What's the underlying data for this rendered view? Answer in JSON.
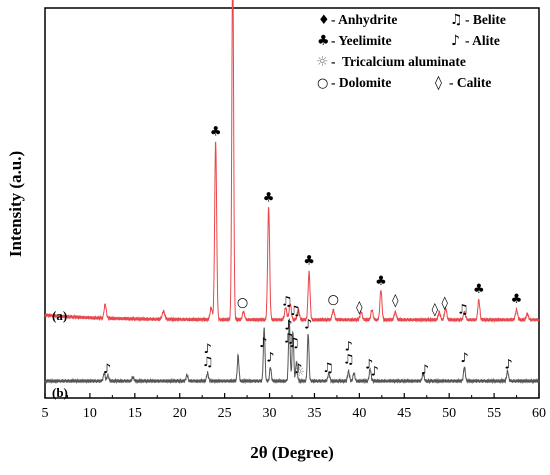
{
  "chart_data": {
    "type": "line",
    "xlabel": "2θ (Degree)",
    "ylabel": "Intensity (a.u.)",
    "xlim": [
      5,
      60
    ],
    "x_ticks": [
      5,
      10,
      15,
      20,
      25,
      30,
      35,
      40,
      45,
      50,
      55,
      60
    ],
    "y_ticks_shown": false,
    "series": [
      {
        "name": "(a)",
        "color": "#e8474b",
        "baseline": 0.155,
        "peaks": [
          {
            "x": 11.7,
            "h": 0.035,
            "w": 0.12
          },
          {
            "x": 18.2,
            "h": 0.02,
            "w": 0.14
          },
          {
            "x": 23.5,
            "h": 0.03,
            "w": 0.12
          },
          {
            "x": 24.0,
            "h": 0.45,
            "w": 0.11
          },
          {
            "x": 25.9,
            "h": 0.905,
            "w": 0.1
          },
          {
            "x": 27.1,
            "h": 0.02,
            "w": 0.12
          },
          {
            "x": 29.9,
            "h": 0.285,
            "w": 0.11
          },
          {
            "x": 31.8,
            "h": 0.03,
            "w": 0.12
          },
          {
            "x": 32.3,
            "h": 0.04,
            "w": 0.12
          },
          {
            "x": 33.2,
            "h": 0.025,
            "w": 0.12
          },
          {
            "x": 34.4,
            "h": 0.12,
            "w": 0.11
          },
          {
            "x": 37.1,
            "h": 0.025,
            "w": 0.12
          },
          {
            "x": 40.2,
            "h": 0.02,
            "w": 0.12
          },
          {
            "x": 41.4,
            "h": 0.025,
            "w": 0.12
          },
          {
            "x": 42.4,
            "h": 0.075,
            "w": 0.11
          },
          {
            "x": 44.0,
            "h": 0.02,
            "w": 0.12
          },
          {
            "x": 48.9,
            "h": 0.02,
            "w": 0.12
          },
          {
            "x": 49.6,
            "h": 0.03,
            "w": 0.12
          },
          {
            "x": 51.7,
            "h": 0.02,
            "w": 0.12
          },
          {
            "x": 53.3,
            "h": 0.05,
            "w": 0.11
          },
          {
            "x": 57.5,
            "h": 0.025,
            "w": 0.12
          },
          {
            "x": 58.7,
            "h": 0.015,
            "w": 0.12
          }
        ]
      },
      {
        "name": "(b)",
        "color": "#555555",
        "baseline": 0.0,
        "peaks": [
          {
            "x": 11.6,
            "h": 0.02,
            "w": 0.1
          },
          {
            "x": 12.0,
            "h": 0.015,
            "w": 0.1
          },
          {
            "x": 14.8,
            "h": 0.01,
            "w": 0.1
          },
          {
            "x": 20.8,
            "h": 0.015,
            "w": 0.1
          },
          {
            "x": 23.1,
            "h": 0.02,
            "w": 0.1
          },
          {
            "x": 26.5,
            "h": 0.065,
            "w": 0.09
          },
          {
            "x": 29.4,
            "h": 0.135,
            "w": 0.09
          },
          {
            "x": 30.1,
            "h": 0.035,
            "w": 0.09
          },
          {
            "x": 32.2,
            "h": 0.155,
            "w": 0.09
          },
          {
            "x": 32.6,
            "h": 0.125,
            "w": 0.09
          },
          {
            "x": 33.0,
            "h": 0.05,
            "w": 0.09
          },
          {
            "x": 34.3,
            "h": 0.12,
            "w": 0.09
          },
          {
            "x": 36.6,
            "h": 0.02,
            "w": 0.1
          },
          {
            "x": 38.8,
            "h": 0.025,
            "w": 0.1
          },
          {
            "x": 39.4,
            "h": 0.02,
            "w": 0.1
          },
          {
            "x": 41.2,
            "h": 0.03,
            "w": 0.1
          },
          {
            "x": 47.1,
            "h": 0.02,
            "w": 0.1
          },
          {
            "x": 51.7,
            "h": 0.035,
            "w": 0.1
          },
          {
            "x": 56.5,
            "h": 0.025,
            "w": 0.1
          }
        ]
      }
    ],
    "legend": {
      "position": "top-right",
      "entries": [
        {
          "symbol": "♦",
          "label": "- Anhydrite"
        },
        {
          "symbol": "♫",
          "label": "- Belite"
        },
        {
          "symbol": "♣",
          "label": "- Yeelimite"
        },
        {
          "symbol": "♪",
          "label": "- Alite"
        },
        {
          "symbol": "☼",
          "label": "-  Tricalcium aluminate"
        },
        {
          "symbol": "○",
          "label": "- Dolomite"
        },
        {
          "symbol": "◊",
          "label": "- Calite"
        }
      ]
    },
    "annotations": [
      {
        "symbol": "♦",
        "x": 25.9,
        "series": "(a)"
      },
      {
        "symbol": "♣",
        "x": 24.0,
        "series": "(a)"
      },
      {
        "symbol": "♣",
        "x": 29.9,
        "series": "(a)"
      },
      {
        "symbol": "○",
        "x": 27.0,
        "series": "(a)"
      },
      {
        "symbol": "♫",
        "x": 31.9,
        "series": "(a)"
      },
      {
        "symbol": "♫",
        "x": 32.8,
        "series": "(a)"
      },
      {
        "symbol": "♣",
        "x": 34.4,
        "series": "(a)"
      },
      {
        "symbol": "○",
        "x": 37.1,
        "series": "(a)"
      },
      {
        "symbol": "◊",
        "x": 40.0,
        "series": "(a)"
      },
      {
        "symbol": "♣",
        "x": 42.4,
        "series": "(a)"
      },
      {
        "symbol": "◊",
        "x": 44.0,
        "series": "(a)"
      },
      {
        "symbol": "◊",
        "x": 48.4,
        "series": "(a)"
      },
      {
        "symbol": "◊",
        "x": 49.5,
        "series": "(a)"
      },
      {
        "symbol": "♫",
        "x": 51.5,
        "series": "(a)"
      },
      {
        "symbol": "♣",
        "x": 53.3,
        "series": "(a)"
      },
      {
        "symbol": "♣",
        "x": 57.5,
        "series": "(a)"
      },
      {
        "symbol": "♪",
        "x": 11.9,
        "series": "(b)"
      },
      {
        "symbol": "♫",
        "x": 23.1,
        "series": "(b)"
      },
      {
        "symbol": "♪",
        "x": 23.1,
        "series": "(b)"
      },
      {
        "symbol": "♪",
        "x": 29.3,
        "series": "(b)"
      },
      {
        "symbol": "♪",
        "x": 30.1,
        "series": "(b)"
      },
      {
        "symbol": "♫",
        "x": 32.1,
        "series": "(b)"
      },
      {
        "symbol": "♪",
        "x": 32.1,
        "series": "(b)"
      },
      {
        "symbol": "♪",
        "x": 33.2,
        "series": "(b)"
      },
      {
        "symbol": "♫",
        "x": 32.7,
        "series": "(b)"
      },
      {
        "symbol": "☼",
        "x": 33.3,
        "series": "(b)"
      },
      {
        "symbol": "♪",
        "x": 34.3,
        "series": "(b)"
      },
      {
        "symbol": "♫",
        "x": 36.5,
        "series": "(b)"
      },
      {
        "symbol": "♫",
        "x": 38.8,
        "series": "(b)"
      },
      {
        "symbol": "♪",
        "x": 38.8,
        "series": "(b)"
      },
      {
        "symbol": "♪",
        "x": 41.1,
        "series": "(b)"
      },
      {
        "symbol": "♪",
        "x": 41.7,
        "series": "(b)"
      },
      {
        "symbol": "♪",
        "x": 47.3,
        "series": "(b)"
      },
      {
        "symbol": "♪",
        "x": 51.7,
        "series": "(b)"
      },
      {
        "symbol": "♪",
        "x": 56.6,
        "series": "(b)"
      }
    ]
  }
}
